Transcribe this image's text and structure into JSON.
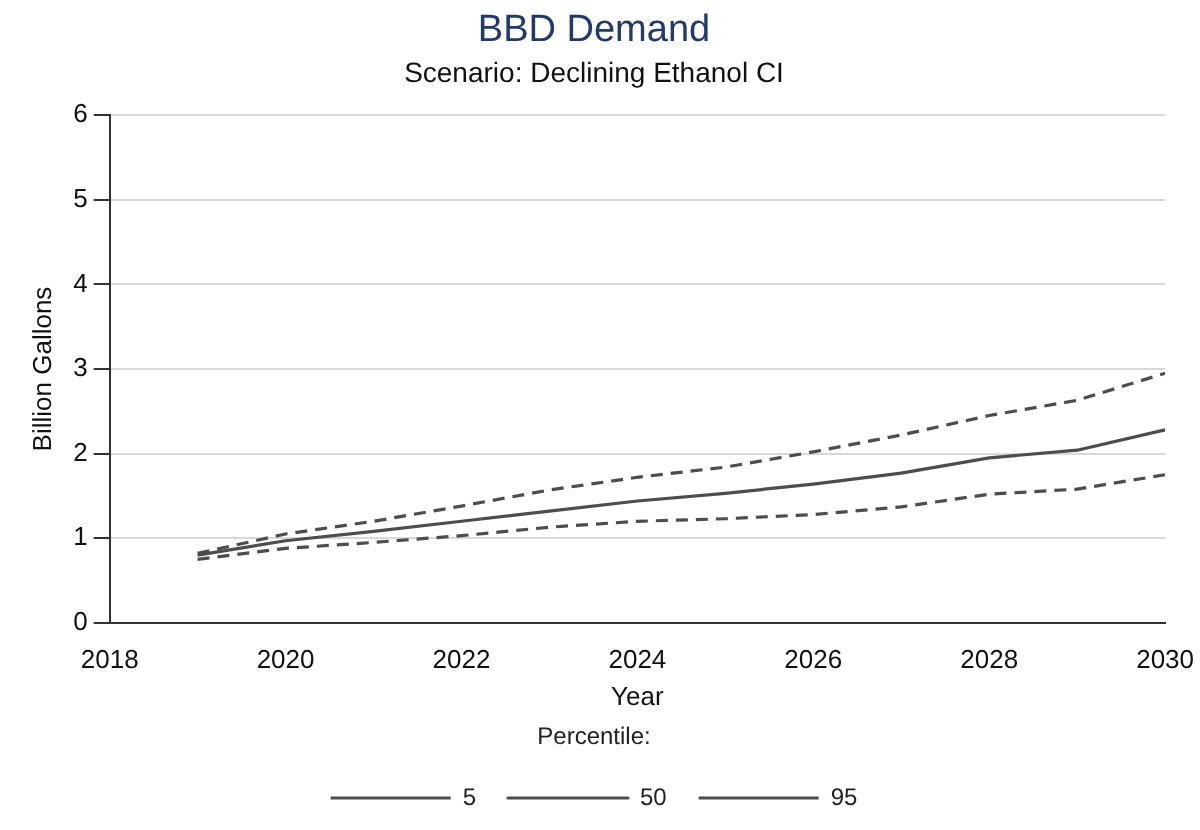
{
  "chart_data": {
    "type": "line",
    "title": "BBD Demand",
    "subtitle": "Scenario: Declining Ethanol CI",
    "xlabel": "Year",
    "ylabel": "Billion Gallons",
    "legend_title": "Percentile:",
    "x": [
      2019,
      2020,
      2021,
      2022,
      2023,
      2024,
      2025,
      2026,
      2027,
      2028,
      2029,
      2030
    ],
    "xlim": [
      2018,
      2030
    ],
    "xticks": [
      2018,
      2020,
      2022,
      2024,
      2026,
      2028,
      2030
    ],
    "ylim": [
      0,
      6
    ],
    "yticks": [
      0,
      1,
      2,
      3,
      4,
      5,
      6
    ],
    "grid": "y",
    "legend": "bottom",
    "marker": "none",
    "series": [
      {
        "name": "5",
        "color": "#4d4d4d",
        "line_style": "dashed",
        "values": [
          0.75,
          0.88,
          0.95,
          1.03,
          1.13,
          1.2,
          1.23,
          1.28,
          1.37,
          1.52,
          1.58,
          1.75
        ]
      },
      {
        "name": "50",
        "color": "#4d4d4d",
        "line_style": "solid",
        "values": [
          0.8,
          0.97,
          1.08,
          1.2,
          1.32,
          1.44,
          1.53,
          1.64,
          1.77,
          1.95,
          2.04,
          2.28
        ]
      },
      {
        "name": "95",
        "color": "#4d4d4d",
        "line_style": "dashed",
        "values": [
          0.82,
          1.05,
          1.2,
          1.38,
          1.57,
          1.72,
          1.84,
          2.02,
          2.22,
          2.45,
          2.63,
          2.95
        ]
      }
    ]
  }
}
